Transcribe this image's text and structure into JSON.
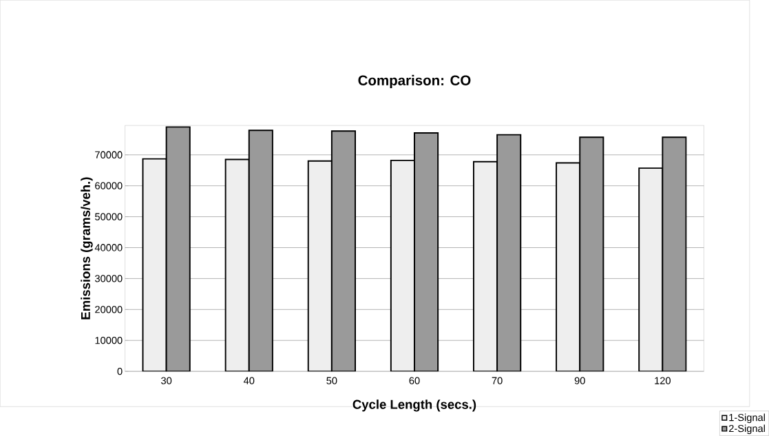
{
  "chart_data": {
    "type": "bar",
    "title": "Comparison: CO",
    "xlabel": "Cycle Length (secs.)",
    "ylabel": "Emissions (grams/veh.)",
    "categories": [
      "30",
      "40",
      "50",
      "60",
      "70",
      "90",
      "120"
    ],
    "series": [
      {
        "name": "1-Signal",
        "color": "#eeeeee",
        "values": [
          68700,
          68500,
          68000,
          68200,
          67800,
          67400,
          65700
        ]
      },
      {
        "name": "2-Signal",
        "color": "#9a9a9a",
        "values": [
          79000,
          77900,
          77700,
          77100,
          76500,
          75700,
          75700
        ]
      }
    ],
    "ylim": [
      0,
      79500
    ],
    "yticks": [
      0,
      10000,
      20000,
      30000,
      40000,
      50000,
      60000,
      70000
    ],
    "grid": "y",
    "legend": "bottom right"
  }
}
